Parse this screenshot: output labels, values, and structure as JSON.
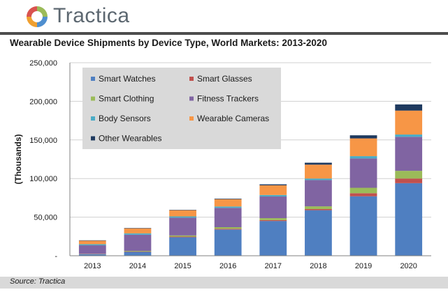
{
  "brand": {
    "name": "Tractica"
  },
  "title": "Wearable Device Shipments by Device Type, World Markets: 2013-2020",
  "source": "Source: Tractica",
  "colors": {
    "Smart Watches": "#4f7fc1",
    "Smart Glasses": "#c0504d",
    "Smart Clothing": "#9bbb59",
    "Fitness Trackers": "#8064a2",
    "Body Sensors": "#4bacc6",
    "Wearable Cameras": "#f79646",
    "Other Wearables": "#1f3a5f"
  },
  "chart_data": {
    "type": "bar",
    "stacked": true,
    "title": "Wearable Device Shipments by Device Type, World Markets: 2013-2020",
    "ylabel": "(Thousands)",
    "xlabel": "",
    "ylim": [
      0,
      250000
    ],
    "yticks": [
      "-",
      "50,000",
      "100,000",
      "150,000",
      "200,000",
      "250,000"
    ],
    "grid": true,
    "legend_position": "top-left",
    "categories": [
      "2013",
      "2014",
      "2015",
      "2016",
      "2017",
      "2018",
      "2019",
      "2020"
    ],
    "series": [
      {
        "name": "Smart Watches",
        "values": [
          2000,
          5000,
          24000,
          34000,
          45000,
          59000,
          77000,
          94000
        ]
      },
      {
        "name": "Smart Glasses",
        "values": [
          200,
          500,
          800,
          1000,
          1200,
          1500,
          4000,
          6000
        ]
      },
      {
        "name": "Smart Clothing",
        "values": [
          300,
          800,
          1500,
          2000,
          2500,
          3500,
          7000,
          10000
        ]
      },
      {
        "name": "Fitness Trackers",
        "values": [
          11000,
          21000,
          23000,
          25000,
          28000,
          34000,
          38000,
          44000
        ]
      },
      {
        "name": "Body Sensors",
        "values": [
          1500,
          1700,
          1700,
          1800,
          2000,
          2000,
          3000,
          3000
        ]
      },
      {
        "name": "Wearable Cameras",
        "values": [
          4500,
          6500,
          8000,
          9500,
          12500,
          18000,
          23000,
          31000
        ]
      },
      {
        "name": "Other Wearables",
        "values": [
          500,
          500,
          500,
          700,
          1300,
          2500,
          4000,
          8000
        ]
      }
    ]
  }
}
